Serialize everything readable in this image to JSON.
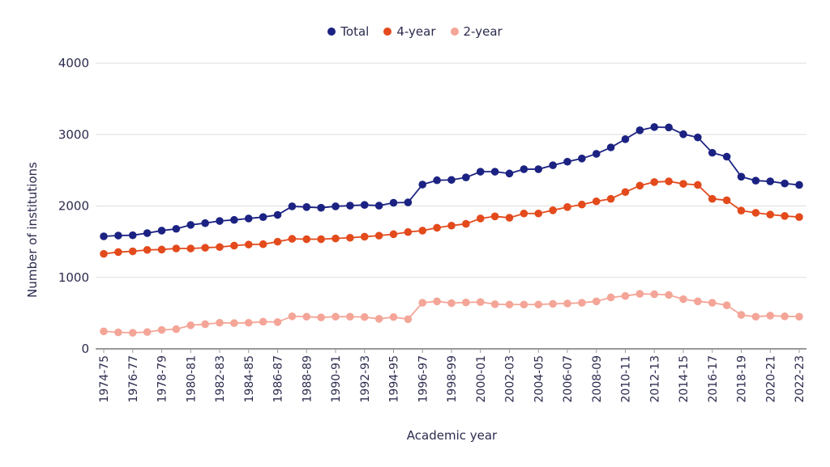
{
  "chart_data": {
    "type": "line",
    "xlabel": "Academic year",
    "ylabel": "Number of institutions",
    "ylim": [
      0,
      4000
    ],
    "yticks": [
      0,
      1000,
      2000,
      3000,
      4000
    ],
    "grid": true,
    "legend_placement": "top",
    "categories": [
      "1974-75",
      "1975-76",
      "1976-77",
      "1977-78",
      "1978-79",
      "1979-80",
      "1980-81",
      "1981-82",
      "1982-83",
      "1983-84",
      "1984-85",
      "1985-86",
      "1986-87",
      "1987-88",
      "1988-89",
      "1989-90",
      "1990-91",
      "1991-92",
      "1992-93",
      "1993-94",
      "1994-95",
      "1995-96",
      "1996-97",
      "1997-98",
      "1998-99",
      "1999-00",
      "2000-01",
      "2001-02",
      "2002-03",
      "2003-04",
      "2004-05",
      "2005-06",
      "2006-07",
      "2007-08",
      "2008-09",
      "2009-10",
      "2010-11",
      "2011-12",
      "2012-13",
      "2013-14",
      "2014-15",
      "2015-16",
      "2016-17",
      "2017-18",
      "2018-19",
      "2019-20",
      "2020-21",
      "2021-22",
      "2022-23"
    ],
    "series": [
      {
        "name": "Total",
        "color": "#1b2282",
        "values": [
          1575,
          1586,
          1590,
          1620,
          1655,
          1680,
          1735,
          1760,
          1790,
          1805,
          1825,
          1845,
          1875,
          1995,
          1985,
          1975,
          1995,
          2005,
          2015,
          2005,
          2045,
          2050,
          2300,
          2360,
          2365,
          2400,
          2480,
          2480,
          2455,
          2515,
          2515,
          2570,
          2620,
          2665,
          2730,
          2820,
          2935,
          3060,
          3105,
          3100,
          3005,
          2960,
          2745,
          2690,
          2410,
          2355,
          2345,
          2315,
          2295
        ]
      },
      {
        "name": "4-year",
        "color": "#e34a1c",
        "values": [
          1330,
          1355,
          1365,
          1385,
          1390,
          1405,
          1405,
          1415,
          1425,
          1445,
          1460,
          1465,
          1500,
          1540,
          1535,
          1535,
          1545,
          1555,
          1570,
          1585,
          1605,
          1635,
          1655,
          1695,
          1725,
          1750,
          1825,
          1855,
          1835,
          1895,
          1895,
          1940,
          1985,
          2020,
          2065,
          2100,
          2195,
          2285,
          2335,
          2345,
          2310,
          2295,
          2100,
          2080,
          1935,
          1905,
          1880,
          1860,
          1845
        ]
      },
      {
        "name": "2-year",
        "color": "#f4a597",
        "values": [
          245,
          231,
          225,
          235,
          265,
          275,
          330,
          345,
          365,
          360,
          365,
          380,
          375,
          455,
          450,
          440,
          450,
          450,
          445,
          420,
          445,
          415,
          645,
          665,
          640,
          650,
          655,
          625,
          620,
          620,
          620,
          630,
          635,
          645,
          665,
          720,
          740,
          770,
          765,
          755,
          695,
          665,
          645,
          610,
          475,
          450,
          465,
          455,
          450
        ]
      }
    ]
  }
}
